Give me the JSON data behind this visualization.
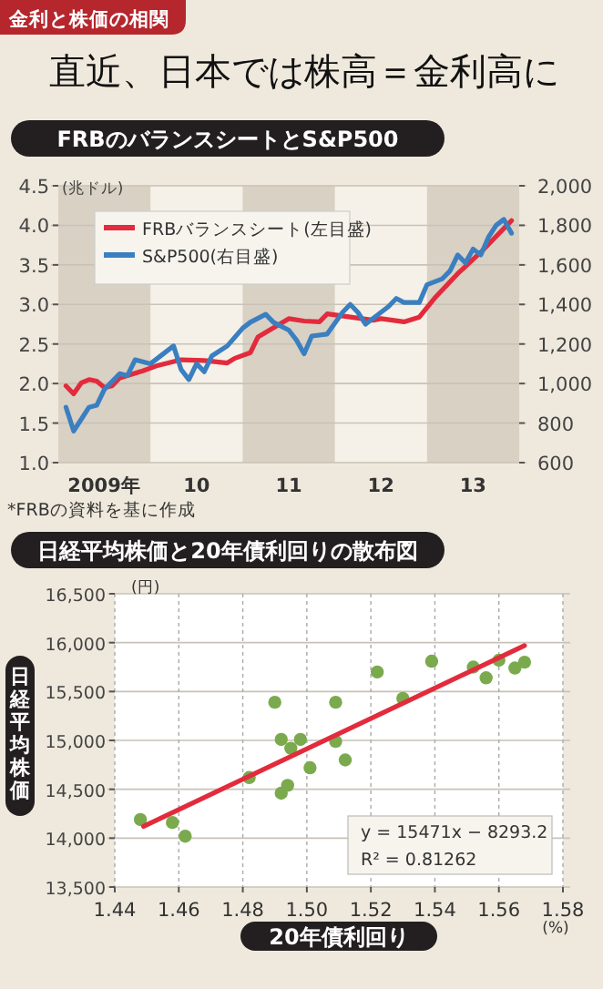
{
  "chart_data": [
    {
      "type": "other",
      "subtitle": "金利と株価の相関",
      "title": "直近、日本では株高＝金利高に"
    },
    {
      "type": "line",
      "title": "FRBのバランスシートとS&P500",
      "ylabel": "(兆ドル)",
      "annotations": [
        "*FRBの資料を基に作成"
      ],
      "xlim": [
        "2009-01",
        "2014-01"
      ],
      "ylim": [
        1.0,
        4.5
      ],
      "y2lim": [
        600,
        2000
      ],
      "xticks": [
        {
          "value": "2009-07",
          "label": "2009年"
        },
        {
          "value": "2010-07",
          "label": "10"
        },
        {
          "value": "2011-07",
          "label": "11"
        },
        {
          "value": "2012-07",
          "label": "12"
        },
        {
          "value": "2013-07",
          "label": "13"
        }
      ],
      "yticks": [
        {
          "value": 1.0,
          "label": "1.0"
        },
        1.5,
        {
          "value": 2.0,
          "label": "2.0"
        },
        2.5,
        {
          "value": 3.0,
          "label": "3.0"
        },
        3.5,
        {
          "value": 4.0,
          "label": "4.0"
        },
        4.5
      ],
      "y2ticks": [
        600,
        800,
        {
          "value": 1000,
          "label": "1,000"
        },
        {
          "value": 1200,
          "label": "1,200"
        },
        {
          "value": 1400,
          "label": "1,400"
        },
        {
          "value": 1600,
          "label": "1,600"
        },
        {
          "value": 1800,
          "label": "1,800"
        },
        {
          "value": 2000,
          "label": "2,000"
        }
      ],
      "bands": [
        {
          "axis": "x",
          "from": "2009-01",
          "to": "2010-01",
          "color": "#d9d1c4"
        },
        {
          "axis": "x",
          "from": "2011-01",
          "to": "2012-01",
          "color": "#d9d1c4"
        },
        {
          "axis": "x",
          "from": "2013-01",
          "to": "2014-01",
          "color": "#d9d1c4"
        }
      ],
      "grid": "y",
      "legend": "top left",
      "line_style": "solid",
      "series": [
        {
          "name": "FRBバランスシート(左目盛)",
          "color": "#e22b3c",
          "x": [
            "2009-02",
            "2009-03",
            "2009-04",
            "2009-05",
            "2009-06",
            "2009-07",
            "2009-08",
            "2009-09",
            "2009-12",
            "2010-02",
            "2010-05",
            "2010-08",
            "2010-11",
            "2010-12",
            "2011-02",
            "2011-03",
            "2011-07",
            "2011-09",
            "2011-11",
            "2011-12",
            "2012-03",
            "2012-06",
            "2012-07",
            "2012-10",
            "2012-12",
            "2013-02",
            "2013-05",
            "2013-08",
            "2013-11",
            "2013-12"
          ],
          "values": [
            1.97,
            1.87,
            2.01,
            2.05,
            2.03,
            1.95,
            1.97,
            2.07,
            2.16,
            2.23,
            2.3,
            2.29,
            2.26,
            2.32,
            2.39,
            2.59,
            2.82,
            2.79,
            2.78,
            2.88,
            2.84,
            2.8,
            2.82,
            2.78,
            2.84,
            3.08,
            3.39,
            3.66,
            3.96,
            4.06
          ]
        },
        {
          "name": "S&P500(右目盛)",
          "color": "#3a7fc0",
          "axis": "y2",
          "x": [
            "2009-02",
            "2009-03",
            "2009-04",
            "2009-05",
            "2009-06",
            "2009-07",
            "2009-09",
            "2009-10",
            "2009-11",
            "2010-01",
            "2010-03",
            "2010-04",
            "2010-05",
            "2010-06",
            "2010-07",
            "2010-08",
            "2010-09",
            "2010-11",
            "2011-01",
            "2011-02",
            "2011-04",
            "2011-05",
            "2011-07",
            "2011-08",
            "2011-09",
            "2011-10",
            "2011-12",
            "2012-02",
            "2012-03",
            "2012-04",
            "2012-05",
            "2012-07",
            "2012-08",
            "2012-09",
            "2012-10",
            "2012-12",
            "2013-01",
            "2013-03",
            "2013-04",
            "2013-05",
            "2013-06",
            "2013-07",
            "2013-08",
            "2013-09",
            "2013-10",
            "2013-11",
            "2013-12"
          ],
          "values": [
            880,
            760,
            820,
            880,
            890,
            970,
            1050,
            1040,
            1120,
            1100,
            1160,
            1190,
            1070,
            1020,
            1100,
            1060,
            1140,
            1190,
            1280,
            1310,
            1350,
            1310,
            1270,
            1220,
            1150,
            1240,
            1250,
            1360,
            1400,
            1360,
            1300,
            1360,
            1390,
            1430,
            1410,
            1410,
            1500,
            1530,
            1570,
            1650,
            1610,
            1680,
            1650,
            1740,
            1800,
            1830,
            1760
          ]
        }
      ]
    },
    {
      "type": "scatter",
      "title": "日経平均株価と20年債利回りの散布図",
      "ylabel": "日経平均株価",
      "xlabel": "20年債利回り",
      "annotations": [
        "(円)",
        "(%)",
        "y = 15471x − 8293.2",
        "R² = 0.81262"
      ],
      "xlim": [
        1.44,
        1.58
      ],
      "ylim": [
        13500,
        16500
      ],
      "xticks": [
        1.44,
        1.46,
        1.48,
        {
          "value": 1.5,
          "label": "1.50"
        },
        1.52,
        1.54,
        1.56,
        1.58
      ],
      "yticks": [
        {
          "value": 13500,
          "label": "13,500"
        },
        {
          "value": 14000,
          "label": "14,000"
        },
        {
          "value": 14500,
          "label": "14,500"
        },
        {
          "value": 15000,
          "label": "15,000"
        },
        {
          "value": 15500,
          "label": "15,500"
        },
        {
          "value": 16000,
          "label": "16,000"
        },
        {
          "value": 16500,
          "label": "16,500"
        }
      ],
      "grid": true,
      "series": [
        {
          "type": "scatter",
          "marker": "circle",
          "color": "#7aaa4d",
          "x": [
            1.448,
            1.458,
            1.462,
            1.482,
            1.49,
            1.492,
            1.492,
            1.494,
            1.495,
            1.498,
            1.501,
            1.509,
            1.509,
            1.512,
            1.522,
            1.53,
            1.539,
            1.552,
            1.556,
            1.56,
            1.565,
            1.568
          ],
          "values": [
            14190,
            14160,
            14020,
            14620,
            15390,
            15010,
            14460,
            14540,
            14920,
            15010,
            14720,
            15390,
            14990,
            14800,
            15700,
            15430,
            15810,
            15750,
            15640,
            15820,
            15740,
            15800
          ]
        },
        {
          "type": "line",
          "color": "#e22b3c",
          "x": [
            1.449,
            1.568
          ],
          "values": [
            14120,
            15970
          ]
        }
      ]
    }
  ]
}
